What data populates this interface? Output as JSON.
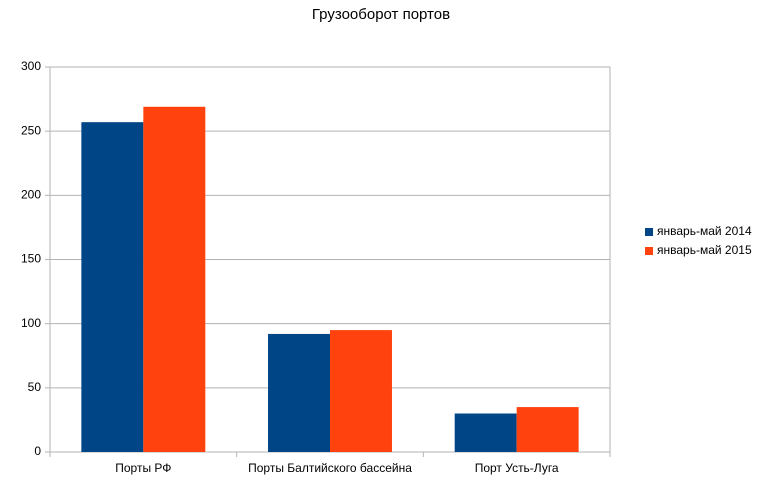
{
  "chart_data": {
    "type": "bar",
    "title": "Грузооборот портов",
    "categories": [
      "Порты РФ",
      "Порты Балтийского бассейна",
      "Порт Усть-Луга"
    ],
    "series": [
      {
        "name": "январь-май 2014",
        "color": "#004586",
        "values": [
          257,
          92,
          30
        ]
      },
      {
        "name": "январь-май 2015",
        "color": "#ff420e",
        "values": [
          269,
          95,
          35
        ]
      }
    ],
    "ylim": [
      0,
      300
    ],
    "yticks": [
      0,
      50,
      100,
      150,
      200,
      250,
      300
    ],
    "grid": true,
    "legend": "right"
  }
}
